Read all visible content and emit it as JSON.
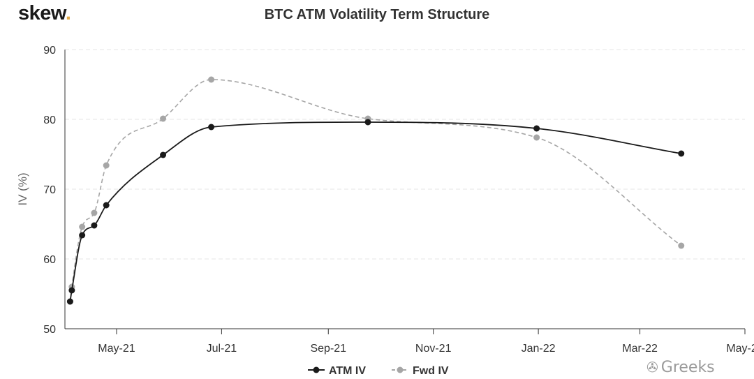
{
  "brand": {
    "name": "skew",
    "dot": "."
  },
  "watermark": {
    "icon": "wechat-icon",
    "text": "Greeks"
  },
  "chart_data": {
    "type": "line",
    "title": "BTC ATM Volatility Term Structure",
    "ylabel": "IV (%)",
    "xlabel": "",
    "ylim": [
      50,
      90
    ],
    "yticks": [
      50,
      60,
      70,
      80,
      90
    ],
    "xlim": [
      "2021-04-01",
      "2022-05-01"
    ],
    "xticks": [
      {
        "date": "2021-05-01",
        "label": "May-21"
      },
      {
        "date": "2021-07-01",
        "label": "Jul-21"
      },
      {
        "date": "2021-09-01",
        "label": "Sep-21"
      },
      {
        "date": "2021-11-01",
        "label": "Nov-21"
      },
      {
        "date": "2022-01-01",
        "label": "Jan-22"
      },
      {
        "date": "2022-03-01",
        "label": "Mar-22"
      },
      {
        "date": "2022-05-01",
        "label": "May-22"
      }
    ],
    "grid": true,
    "legend": "bottom",
    "series": [
      {
        "name": "ATM IV",
        "color": "#1a1a1a",
        "style": "solid",
        "points": [
          {
            "x": "2021-04-04",
            "y": 53.9
          },
          {
            "x": "2021-04-05",
            "y": 55.5
          },
          {
            "x": "2021-04-11",
            "y": 63.4
          },
          {
            "x": "2021-04-18",
            "y": 64.8
          },
          {
            "x": "2021-04-25",
            "y": 67.7
          },
          {
            "x": "2021-05-28",
            "y": 74.9
          },
          {
            "x": "2021-06-25",
            "y": 78.9
          },
          {
            "x": "2021-09-24",
            "y": 79.6
          },
          {
            "x": "2021-12-31",
            "y": 78.7
          },
          {
            "x": "2022-03-25",
            "y": 75.1
          }
        ]
      },
      {
        "name": "Fwd IV",
        "color": "#a6a6a6",
        "style": "dashed",
        "points": [
          {
            "x": "2021-04-04",
            "y": 53.9
          },
          {
            "x": "2021-04-05",
            "y": 56.0
          },
          {
            "x": "2021-04-11",
            "y": 64.6
          },
          {
            "x": "2021-04-18",
            "y": 66.6
          },
          {
            "x": "2021-04-25",
            "y": 73.4
          },
          {
            "x": "2021-05-28",
            "y": 80.1
          },
          {
            "x": "2021-06-25",
            "y": 85.7
          },
          {
            "x": "2021-09-24",
            "y": 80.1
          },
          {
            "x": "2021-12-31",
            "y": 77.4
          },
          {
            "x": "2022-03-25",
            "y": 61.9
          }
        ]
      }
    ]
  }
}
